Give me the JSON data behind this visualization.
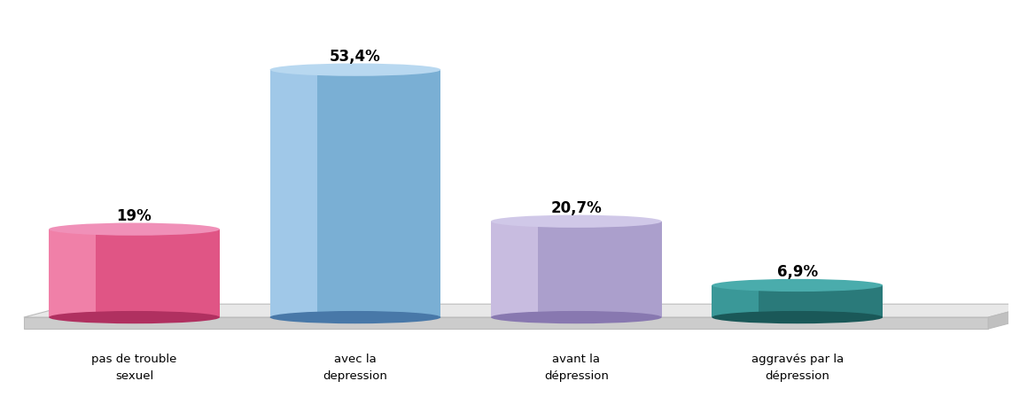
{
  "categories": [
    "pas de trouble\nsexuel",
    "avec la\ndepression",
    "avant la\ndépression",
    "aggravés par la\ndépression"
  ],
  "values": [
    19.0,
    53.4,
    20.7,
    6.9
  ],
  "labels": [
    "19%",
    "53,4%",
    "20,7%",
    "6,9%"
  ],
  "colors_main": [
    "#e05585",
    "#7aafd4",
    "#ab9fcc",
    "#2a7a7a"
  ],
  "colors_light": [
    "#f080a8",
    "#a0c8e8",
    "#c8bce0",
    "#3a9898"
  ],
  "colors_dark": [
    "#b03060",
    "#4878a8",
    "#8878b0",
    "#1a5858"
  ],
  "colors_top": [
    "#f090b8",
    "#b8d8f0",
    "#d0c8e8",
    "#4aacac"
  ],
  "platform_color_top": "#e8e8e8",
  "platform_color_side": "#cccccc",
  "platform_edge": "#bbbbbb",
  "background_color": "#ffffff",
  "figsize": [
    11.42,
    4.74
  ],
  "dpi": 100
}
